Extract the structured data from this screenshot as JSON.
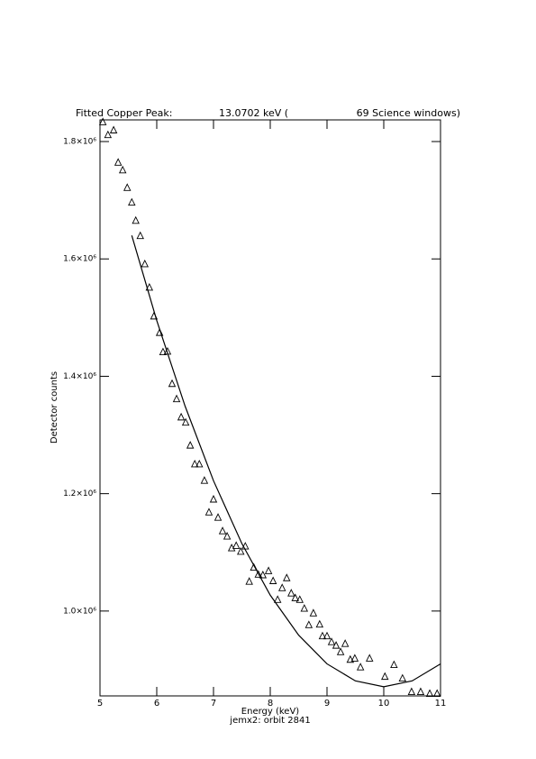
{
  "chart_data": {
    "type": "scatter",
    "title_parts": [
      "Fitted Copper Peak:",
      "13.0702 keV (",
      "69 Science windows)"
    ],
    "x_label": "Energy (keV)",
    "subtitle": "jemx2: orbit 2841",
    "y_label": "Detector counts",
    "xlim": [
      5,
      11
    ],
    "xticks": [
      5,
      6,
      7,
      8,
      9,
      10,
      11
    ],
    "ylim": [
      855400,
      1836900
    ],
    "yticks": [
      {
        "value": 1000000,
        "label": "1.0×10⁶"
      },
      {
        "value": 1200000,
        "label": "1.2×10⁶"
      },
      {
        "value": 1400000,
        "label": "1.4×10⁶"
      },
      {
        "value": 1600000,
        "label": "1.6×10⁶"
      },
      {
        "value": 1800000,
        "label": "1.8×10⁶"
      }
    ],
    "color": "#000000",
    "series": [
      {
        "marker": "triangle",
        "x": [
          5.05,
          5.14,
          5.24,
          5.32,
          5.4,
          5.48,
          5.56,
          5.63,
          5.71,
          5.79,
          5.87,
          5.95,
          6.05,
          6.11,
          6.19,
          6.27,
          6.35,
          6.43,
          6.51,
          6.59,
          6.67,
          6.75,
          6.84,
          6.92,
          7.0,
          7.08,
          7.16,
          7.24,
          7.32,
          7.4,
          7.48,
          7.56,
          7.63,
          7.71,
          7.79,
          7.87,
          7.97,
          8.05,
          8.13,
          8.21,
          8.29,
          8.37,
          8.44,
          8.52,
          8.6,
          8.68,
          8.76,
          8.87,
          8.92,
          9.0,
          9.08,
          9.16,
          9.24,
          9.32,
          9.41,
          9.49,
          9.59,
          9.75,
          10.02,
          10.18,
          10.33,
          10.49,
          10.65,
          10.81,
          10.94
        ],
        "values": [
          1834000,
          1812000,
          1820000,
          1765000,
          1752000,
          1722000,
          1697000,
          1666000,
          1640000,
          1592000,
          1552000,
          1503000,
          1475000,
          1442000,
          1443000,
          1388000,
          1362000,
          1331000,
          1322000,
          1283000,
          1251000,
          1251000,
          1223000,
          1169000,
          1191000,
          1160000,
          1137000,
          1128000,
          1108000,
          1112000,
          1102000,
          1111000,
          1051000,
          1075000,
          1063000,
          1062000,
          1069000,
          1052000,
          1020000,
          1040000,
          1057000,
          1031000,
          1023000,
          1020000,
          1005000,
          977000,
          997000,
          978000,
          958000,
          958000,
          948000,
          942000,
          931000,
          945000,
          918000,
          920000,
          905000,
          920000,
          889000,
          909000,
          886000,
          863000,
          863000,
          860000,
          860000
        ]
      },
      {
        "marker": "line",
        "x": [
          5.56,
          6.0,
          6.5,
          7.0,
          7.5,
          8.0,
          8.5,
          9.0,
          9.5,
          10.0,
          10.5,
          11.0
        ],
        "values": [
          1640000,
          1495000,
          1349000,
          1222000,
          1115000,
          1027000,
          959000,
          910000,
          881000,
          871000,
          881000,
          910000
        ]
      }
    ]
  }
}
